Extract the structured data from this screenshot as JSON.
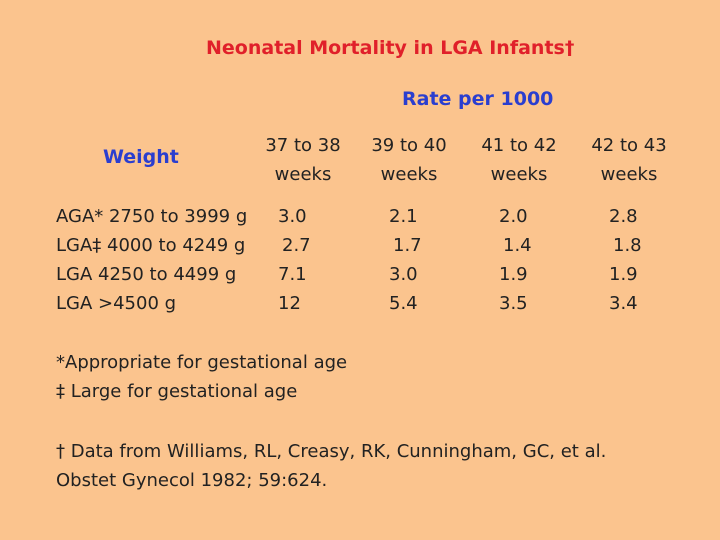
{
  "title": "Neonatal Mortality in LGA Infants†",
  "subtitle": "Rate per 1000",
  "weight_header": "Weight",
  "columns": [
    {
      "line1": "37 to 38",
      "line2": "weeks"
    },
    {
      "line1": "39 to 40",
      "line2": "weeks"
    },
    {
      "line1": "41 to 42",
      "line2": "weeks"
    },
    {
      "line1": "42 to 43",
      "line2": "weeks"
    }
  ],
  "rows": [
    {
      "label": "AGA* 2750 to 3999 g",
      "values": [
        "3.0",
        "2.1",
        "2.0",
        "2.8"
      ]
    },
    {
      "label": "LGA‡ 4000 to 4249 g",
      "values": [
        "2.7",
        "1.7",
        "1.4",
        "1.8"
      ]
    },
    {
      "label": "LGA 4250 to 4499 g",
      "values": [
        "7.1",
        "3.0",
        "1.9",
        "1.9"
      ]
    },
    {
      "label": "LGA >4500 g",
      "values": [
        "12",
        "5.4",
        "3.5",
        "3.4"
      ]
    }
  ],
  "footnotes": {
    "aga": "*Appropriate for gestational age",
    "lga": "‡ Large for gestational age",
    "source": "† Data from Williams, RL, Creasy, RK, Cunningham, GC, et al. Obstet Gynecol 1982; 59:624."
  }
}
